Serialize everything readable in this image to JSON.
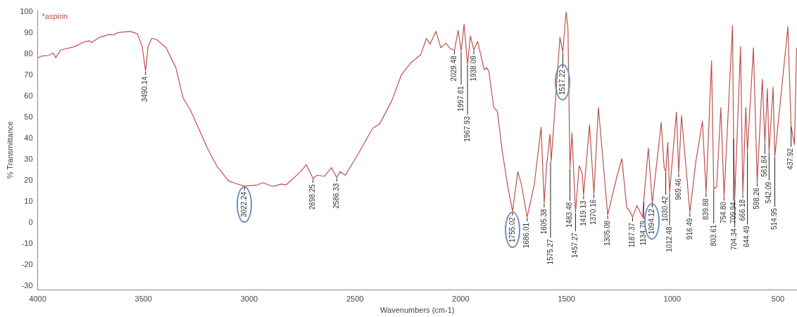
{
  "chart_data": {
    "type": "line",
    "xlabel": "Wavenumbers (cm-1)",
    "ylabel": "% Transmittance",
    "legend": "top left",
    "xlim": [
      4000,
      410
    ],
    "ylim": [
      -32,
      101
    ],
    "xticks": [
      4000,
      3500,
      3000,
      2500,
      2000,
      1500,
      1000,
      500
    ],
    "yticks": [
      -30,
      -20,
      -10,
      0,
      10,
      20,
      30,
      40,
      50,
      60,
      70,
      80,
      90,
      100
    ],
    "series": [
      {
        "name": "*aspirin",
        "color": "#c0504d",
        "x": [
          4000,
          3983,
          3949,
          3926,
          3915,
          3892,
          3824,
          3779,
          3756,
          3745,
          3711,
          3665,
          3642,
          3620,
          3563,
          3529,
          3506,
          3490.14,
          3478,
          3461,
          3438,
          3393,
          3347,
          3313,
          3279,
          3234,
          3200,
          3154,
          3098,
          3064,
          3022.24,
          2962,
          2934,
          2900,
          2883,
          2849,
          2825,
          2757,
          2730,
          2698.25,
          2679,
          2645,
          2611,
          2586.33,
          2570,
          2546,
          2485,
          2417,
          2383,
          2325,
          2280,
          2236,
          2189,
          2162,
          2145,
          2117,
          2094,
          2070,
          2049,
          2029.48,
          2012,
          1997.81,
          1984,
          1967.93,
          1954,
          1938.09,
          1920,
          1889,
          1878,
          1867,
          1844,
          1827,
          1804,
          1781,
          1755.02,
          1730,
          1713,
          1686.01,
          1652,
          1620,
          1605.38,
          1593,
          1578,
          1572,
          1531,
          1517.22,
          1502,
          1493,
          1483.48,
          1474,
          1457.27,
          1440,
          1426,
          1419.13,
          1391,
          1370.16,
          1349,
          1305.08,
          1260,
          1238,
          1215,
          1203,
          1187.37,
          1167,
          1140,
          1134.79,
          1113,
          1094.12,
          1052,
          1038,
          1030.42,
          1021,
          1012.48,
          980,
          969.46,
          956,
          916.49,
          888,
          857,
          839.88,
          814,
          803.61,
          790,
          770,
          754.8,
          715,
          709.94,
          704.34,
          677,
          666.18,
          652,
          644.49,
          616,
          598.26,
          574,
          561.84,
          550,
          542.09,
          523,
          514.95,
          453,
          437.92,
          422,
          412
        ],
        "values": [
          78.2,
          79,
          79.4,
          80.5,
          78.2,
          81.9,
          83.6,
          85.8,
          86.3,
          85.5,
          87.8,
          89.3,
          89.1,
          90.2,
          90.8,
          89.7,
          83.6,
          72,
          83.6,
          87.5,
          86.9,
          83,
          73.6,
          59.2,
          53.6,
          43.6,
          35.8,
          27,
          19.8,
          18.6,
          17.3,
          17.9,
          18.9,
          17.5,
          17.3,
          18.3,
          17.9,
          24.2,
          27.5,
          20.9,
          22.5,
          22,
          26.1,
          21.4,
          24.2,
          22.5,
          32.5,
          44.7,
          46.9,
          58,
          70.3,
          75.8,
          79.7,
          87.5,
          84.7,
          90.8,
          83,
          85.2,
          82.5,
          81.9,
          91.3,
          81.4,
          94.1,
          75.2,
          88.6,
          81.9,
          86,
          72.5,
          73.6,
          71.9,
          54.7,
          53,
          34.2,
          19.2,
          5.3,
          24.2,
          18.1,
          2.6,
          18.1,
          45.3,
          9.2,
          28,
          42,
          29.2,
          88,
          80.8,
          100,
          92.5,
          25.9,
          42.5,
          4.8,
          27,
          23.6,
          13.1,
          46.4,
          13.7,
          54.7,
          3.7,
          22.5,
          30.3,
          7,
          5.9,
          2.6,
          8.1,
          2.6,
          10,
          35.3,
          9.2,
          47.5,
          26,
          24.2,
          38.1,
          14.2,
          52.5,
          23.6,
          50.8,
          4.8,
          29.2,
          48.1,
          14.2,
          76.9,
          15.9,
          17,
          54.7,
          12.5,
          93.6,
          40,
          11.4,
          83.6,
          13.7,
          54.7,
          33.6,
          83,
          19.2,
          68,
          38.1,
          63.6,
          33.6,
          64.2,
          31.4,
          93,
          45.8,
          37,
          83
        ]
      }
    ],
    "annotations": [
      {
        "text": "3490.14",
        "x": 3490.14,
        "y": 72
      },
      {
        "text": "3022.24",
        "x": 3022.24,
        "y": 17.3
      },
      {
        "text": "2698.25",
        "x": 2698.25,
        "y": 20.9
      },
      {
        "text": "2586.33",
        "x": 2586.33,
        "y": 21.4
      },
      {
        "text": "2029.48",
        "x": 2029.48,
        "y": 81.9
      },
      {
        "text": "1997.81",
        "x": 1997.81,
        "y": 81.4
      },
      {
        "text": "1967.93",
        "x": 1967.93,
        "y": 75.2
      },
      {
        "text": "1938.09",
        "x": 1938.09,
        "y": 81.9
      },
      {
        "text": "1755.02",
        "x": 1755.02,
        "y": 5.3
      },
      {
        "text": "1686.01",
        "x": 1686.01,
        "y": 2.6
      },
      {
        "text": "1605.38",
        "x": 1605.38,
        "y": 9.2
      },
      {
        "text": "1575.27",
        "x": 1575.27,
        "y": 29.2
      },
      {
        "text": "1517.22",
        "x": 1517.22,
        "y": 80.8
      },
      {
        "text": "1483.48",
        "x": 1483.48,
        "y": 25.9
      },
      {
        "text": "1457.27",
        "x": 1457.27,
        "y": 4.8
      },
      {
        "text": "1419.13",
        "x": 1419.13,
        "y": 13.1
      },
      {
        "text": "1370.16",
        "x": 1370.16,
        "y": 13.7
      },
      {
        "text": "1305.08",
        "x": 1305.08,
        "y": 3.7
      },
      {
        "text": "1187.37",
        "x": 1187.37,
        "y": 2.6
      },
      {
        "text": "1134.79",
        "x": 1134.79,
        "y": 10
      },
      {
        "text": "1094.12",
        "x": 1094.12,
        "y": 9.2
      },
      {
        "text": "1030.42",
        "x": 1030.42,
        "y": 24.2
      },
      {
        "text": "1012.48",
        "x": 1012.48,
        "y": 14.2
      },
      {
        "text": "969.46",
        "x": 969.46,
        "y": 23.6
      },
      {
        "text": "916.49",
        "x": 916.49,
        "y": 4.8
      },
      {
        "text": "839.88",
        "x": 839.88,
        "y": 14.2
      },
      {
        "text": "803.61",
        "x": 803.61,
        "y": 15.9
      },
      {
        "text": "754.80",
        "x": 754.8,
        "y": 12.5
      },
      {
        "text": "709.94",
        "x": 709.94,
        "y": 40
      },
      {
        "text": "704.34",
        "x": 704.34,
        "y": 11.4
      },
      {
        "text": "666.18",
        "x": 666.18,
        "y": 13.7
      },
      {
        "text": "644.49",
        "x": 644.49,
        "y": 33.6
      },
      {
        "text": "598.26",
        "x": 598.26,
        "y": 19.2
      },
      {
        "text": "561.84",
        "x": 561.84,
        "y": 38.1
      },
      {
        "text": "542.09",
        "x": 542.09,
        "y": 33.6
      },
      {
        "text": "514.95",
        "x": 514.95,
        "y": 31.4
      },
      {
        "text": "437.92",
        "x": 437.92,
        "y": 45.8
      }
    ]
  }
}
